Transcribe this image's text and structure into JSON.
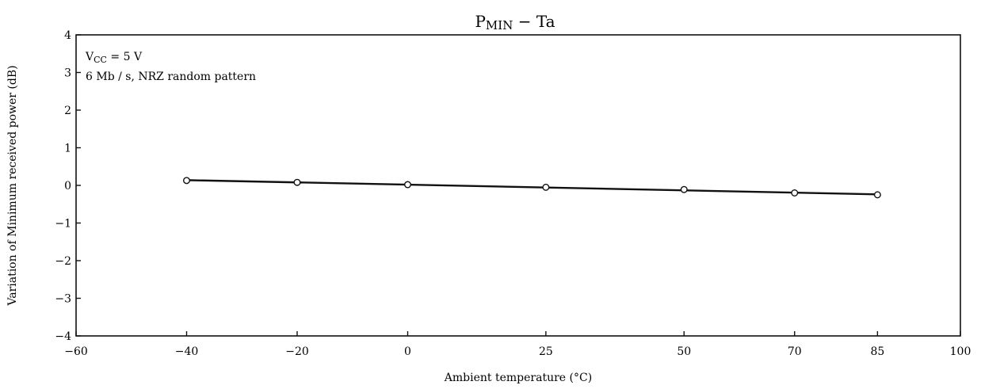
{
  "chart_data": {
    "type": "line",
    "title": {
      "main": "P",
      "sub": "MIN",
      "rest": " − Ta"
    },
    "xlabel": "Ambient temperature (°C)",
    "ylabel": "Variation of Minimum received power (dB)",
    "xlim": [
      -60,
      100
    ],
    "ylim": [
      -4,
      4
    ],
    "x_ticks": [
      -60,
      -40,
      -20,
      0,
      25,
      50,
      70,
      85,
      100
    ],
    "x_tick_labels": [
      "−60",
      "−40",
      "−20",
      "0",
      "25",
      "50",
      "70",
      "85",
      "100"
    ],
    "y_ticks": [
      4,
      3,
      2,
      1,
      0,
      -1,
      -2,
      -3,
      -4
    ],
    "y_tick_labels": [
      "4",
      "3",
      "2",
      "1",
      "0",
      "−1",
      "−2",
      "−3",
      "−4"
    ],
    "grid": false,
    "annotations": [
      {
        "text_main": "V",
        "text_sub": "CC",
        "text_rest": " = 5 V"
      },
      {
        "text": "6 Mb / s, NRZ random pattern"
      }
    ],
    "series": [
      {
        "x": [
          -40,
          -20,
          0,
          25,
          50,
          70,
          85
        ],
        "y": [
          0.13,
          0.08,
          0.02,
          -0.05,
          -0.11,
          -0.2,
          -0.25
        ],
        "marker": "open-circle",
        "line": "fit"
      }
    ]
  }
}
